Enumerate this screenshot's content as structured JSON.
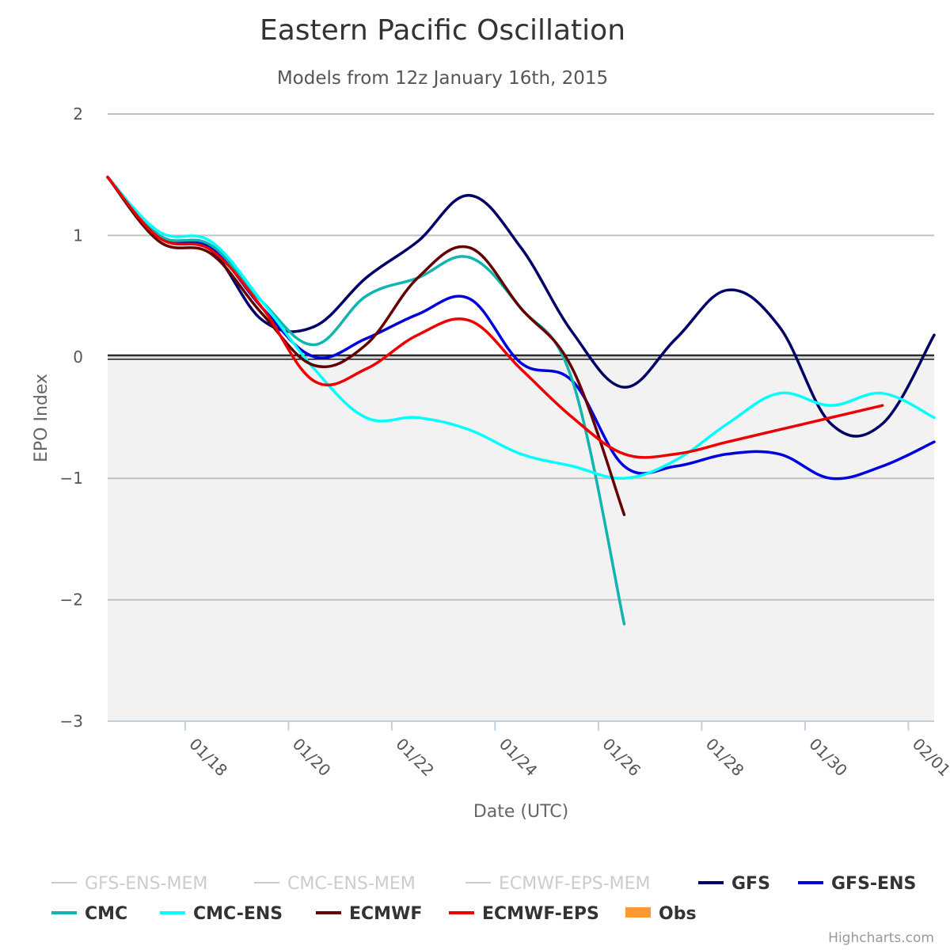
{
  "chart_data": {
    "type": "line",
    "title": "Eastern Pacific Oscillation",
    "subtitle": "Models from 12z January 16th, 2015",
    "xlabel": "Date (UTC)",
    "ylabel": "EPO Index",
    "ylim": [
      -3,
      2
    ],
    "yticks": [
      "2",
      "1",
      "0",
      "−1",
      "−2",
      "−3"
    ],
    "xlim": [
      "2015-01-16T12:00",
      "2015-02-01T12:00"
    ],
    "xticks": [
      {
        "date": "2015-01-18",
        "label": "01/18"
      },
      {
        "date": "2015-01-20",
        "label": "01/20"
      },
      {
        "date": "2015-01-22",
        "label": "01/22"
      },
      {
        "date": "2015-01-24",
        "label": "01/24"
      },
      {
        "date": "2015-01-26",
        "label": "01/26"
      },
      {
        "date": "2015-01-28",
        "label": "01/28"
      },
      {
        "date": "2015-01-30",
        "label": "01/30"
      },
      {
        "date": "2015-02-01",
        "label": "02/01"
      }
    ],
    "negative_band": {
      "from": -3,
      "to": 0,
      "color": "#f2f2f2"
    },
    "grid": true,
    "legend_position": "bottom",
    "series": [
      {
        "name": "GFS-ENS-MEM",
        "color": "#cccccc",
        "visible": false,
        "points": []
      },
      {
        "name": "CMC-ENS-MEM",
        "color": "#cccccc",
        "visible": false,
        "points": []
      },
      {
        "name": "ECMWF-EPS-MEM",
        "color": "#cccccc",
        "visible": false,
        "points": []
      },
      {
        "name": "GFS",
        "color": "#000066",
        "visible": true,
        "points": [
          [
            "2015-01-16T12:00",
            1.48
          ],
          [
            "2015-01-17T12:00",
            1.0
          ],
          [
            "2015-01-18T12:00",
            0.88
          ],
          [
            "2015-01-19T12:00",
            0.3
          ],
          [
            "2015-01-20T12:00",
            0.25
          ],
          [
            "2015-01-21T12:00",
            0.65
          ],
          [
            "2015-01-22T12:00",
            0.95
          ],
          [
            "2015-01-23T12:00",
            1.33
          ],
          [
            "2015-01-24T12:00",
            0.9
          ],
          [
            "2015-01-25T12:00",
            0.2
          ],
          [
            "2015-01-26T12:00",
            -0.25
          ],
          [
            "2015-01-27T12:00",
            0.15
          ],
          [
            "2015-01-28T12:00",
            0.55
          ],
          [
            "2015-01-29T12:00",
            0.25
          ],
          [
            "2015-01-30T12:00",
            -0.55
          ],
          [
            "2015-01-31T12:00",
            -0.55
          ],
          [
            "2015-02-01T12:00",
            0.18
          ]
        ]
      },
      {
        "name": "GFS-ENS",
        "color": "#0000dd",
        "visible": true,
        "points": [
          [
            "2015-01-16T12:00",
            1.48
          ],
          [
            "2015-01-17T12:00",
            1.0
          ],
          [
            "2015-01-18T12:00",
            0.9
          ],
          [
            "2015-01-19T12:00",
            0.4
          ],
          [
            "2015-01-20T12:00",
            0.0
          ],
          [
            "2015-01-21T12:00",
            0.15
          ],
          [
            "2015-01-22T12:00",
            0.35
          ],
          [
            "2015-01-23T12:00",
            0.48
          ],
          [
            "2015-01-24T12:00",
            -0.05
          ],
          [
            "2015-01-25T12:00",
            -0.2
          ],
          [
            "2015-01-26T12:00",
            -0.9
          ],
          [
            "2015-01-27T12:00",
            -0.9
          ],
          [
            "2015-01-28T12:00",
            -0.8
          ],
          [
            "2015-01-29T12:00",
            -0.8
          ],
          [
            "2015-01-30T12:00",
            -1.0
          ],
          [
            "2015-01-31T12:00",
            -0.9
          ],
          [
            "2015-02-01T12:00",
            -0.7
          ]
        ]
      },
      {
        "name": "CMC",
        "color": "#11b5b0",
        "visible": true,
        "points": [
          [
            "2015-01-16T12:00",
            1.48
          ],
          [
            "2015-01-17T12:00",
            1.0
          ],
          [
            "2015-01-18T12:00",
            0.92
          ],
          [
            "2015-01-19T12:00",
            0.45
          ],
          [
            "2015-01-20T12:00",
            0.1
          ],
          [
            "2015-01-21T12:00",
            0.5
          ],
          [
            "2015-01-22T12:00",
            0.65
          ],
          [
            "2015-01-23T12:00",
            0.82
          ],
          [
            "2015-01-24T12:00",
            0.4
          ],
          [
            "2015-01-25T12:00",
            -0.2
          ],
          [
            "2015-01-26T12:00",
            -2.2
          ]
        ]
      },
      {
        "name": "CMC-ENS",
        "color": "#00ffff",
        "visible": true,
        "points": [
          [
            "2015-01-16T12:00",
            1.48
          ],
          [
            "2015-01-17T12:00",
            1.03
          ],
          [
            "2015-01-18T12:00",
            0.95
          ],
          [
            "2015-01-19T12:00",
            0.45
          ],
          [
            "2015-01-20T12:00",
            -0.1
          ],
          [
            "2015-01-21T12:00",
            -0.5
          ],
          [
            "2015-01-22T12:00",
            -0.5
          ],
          [
            "2015-01-23T12:00",
            -0.6
          ],
          [
            "2015-01-24T12:00",
            -0.8
          ],
          [
            "2015-01-25T12:00",
            -0.9
          ],
          [
            "2015-01-26T12:00",
            -1.0
          ],
          [
            "2015-01-27T12:00",
            -0.85
          ],
          [
            "2015-01-28T12:00",
            -0.55
          ],
          [
            "2015-01-29T12:00",
            -0.3
          ],
          [
            "2015-01-30T12:00",
            -0.4
          ],
          [
            "2015-01-31T12:00",
            -0.3
          ],
          [
            "2015-02-01T12:00",
            -0.5
          ]
        ]
      },
      {
        "name": "ECMWF",
        "color": "#660000",
        "visible": true,
        "points": [
          [
            "2015-01-16T12:00",
            1.48
          ],
          [
            "2015-01-17T12:00",
            0.95
          ],
          [
            "2015-01-18T12:00",
            0.85
          ],
          [
            "2015-01-19T12:00",
            0.35
          ],
          [
            "2015-01-20T12:00",
            -0.07
          ],
          [
            "2015-01-21T12:00",
            0.1
          ],
          [
            "2015-01-22T12:00",
            0.65
          ],
          [
            "2015-01-23T12:00",
            0.9
          ],
          [
            "2015-01-24T12:00",
            0.4
          ],
          [
            "2015-01-25T12:00",
            -0.1
          ],
          [
            "2015-01-26T12:00",
            -1.3
          ]
        ]
      },
      {
        "name": "ECMWF-EPS",
        "color": "#ee0000",
        "visible": true,
        "points": [
          [
            "2015-01-16T12:00",
            1.48
          ],
          [
            "2015-01-17T12:00",
            0.98
          ],
          [
            "2015-01-18T12:00",
            0.88
          ],
          [
            "2015-01-19T12:00",
            0.4
          ],
          [
            "2015-01-20T12:00",
            -0.2
          ],
          [
            "2015-01-21T12:00",
            -0.1
          ],
          [
            "2015-01-22T12:00",
            0.18
          ],
          [
            "2015-01-23T12:00",
            0.3
          ],
          [
            "2015-01-24T12:00",
            -0.1
          ],
          [
            "2015-01-25T12:00",
            -0.5
          ],
          [
            "2015-01-26T12:00",
            -0.8
          ],
          [
            "2015-01-27T12:00",
            -0.8
          ],
          [
            "2015-01-28T12:00",
            -0.7
          ],
          [
            "2015-01-29T12:00",
            -0.6
          ],
          [
            "2015-01-30T12:00",
            -0.5
          ],
          [
            "2015-01-31T12:00",
            -0.4
          ]
        ]
      },
      {
        "name": "Obs",
        "color": "#ff9933",
        "visible": true,
        "type": "column",
        "points": []
      }
    ]
  },
  "credits": "Highcharts.com"
}
